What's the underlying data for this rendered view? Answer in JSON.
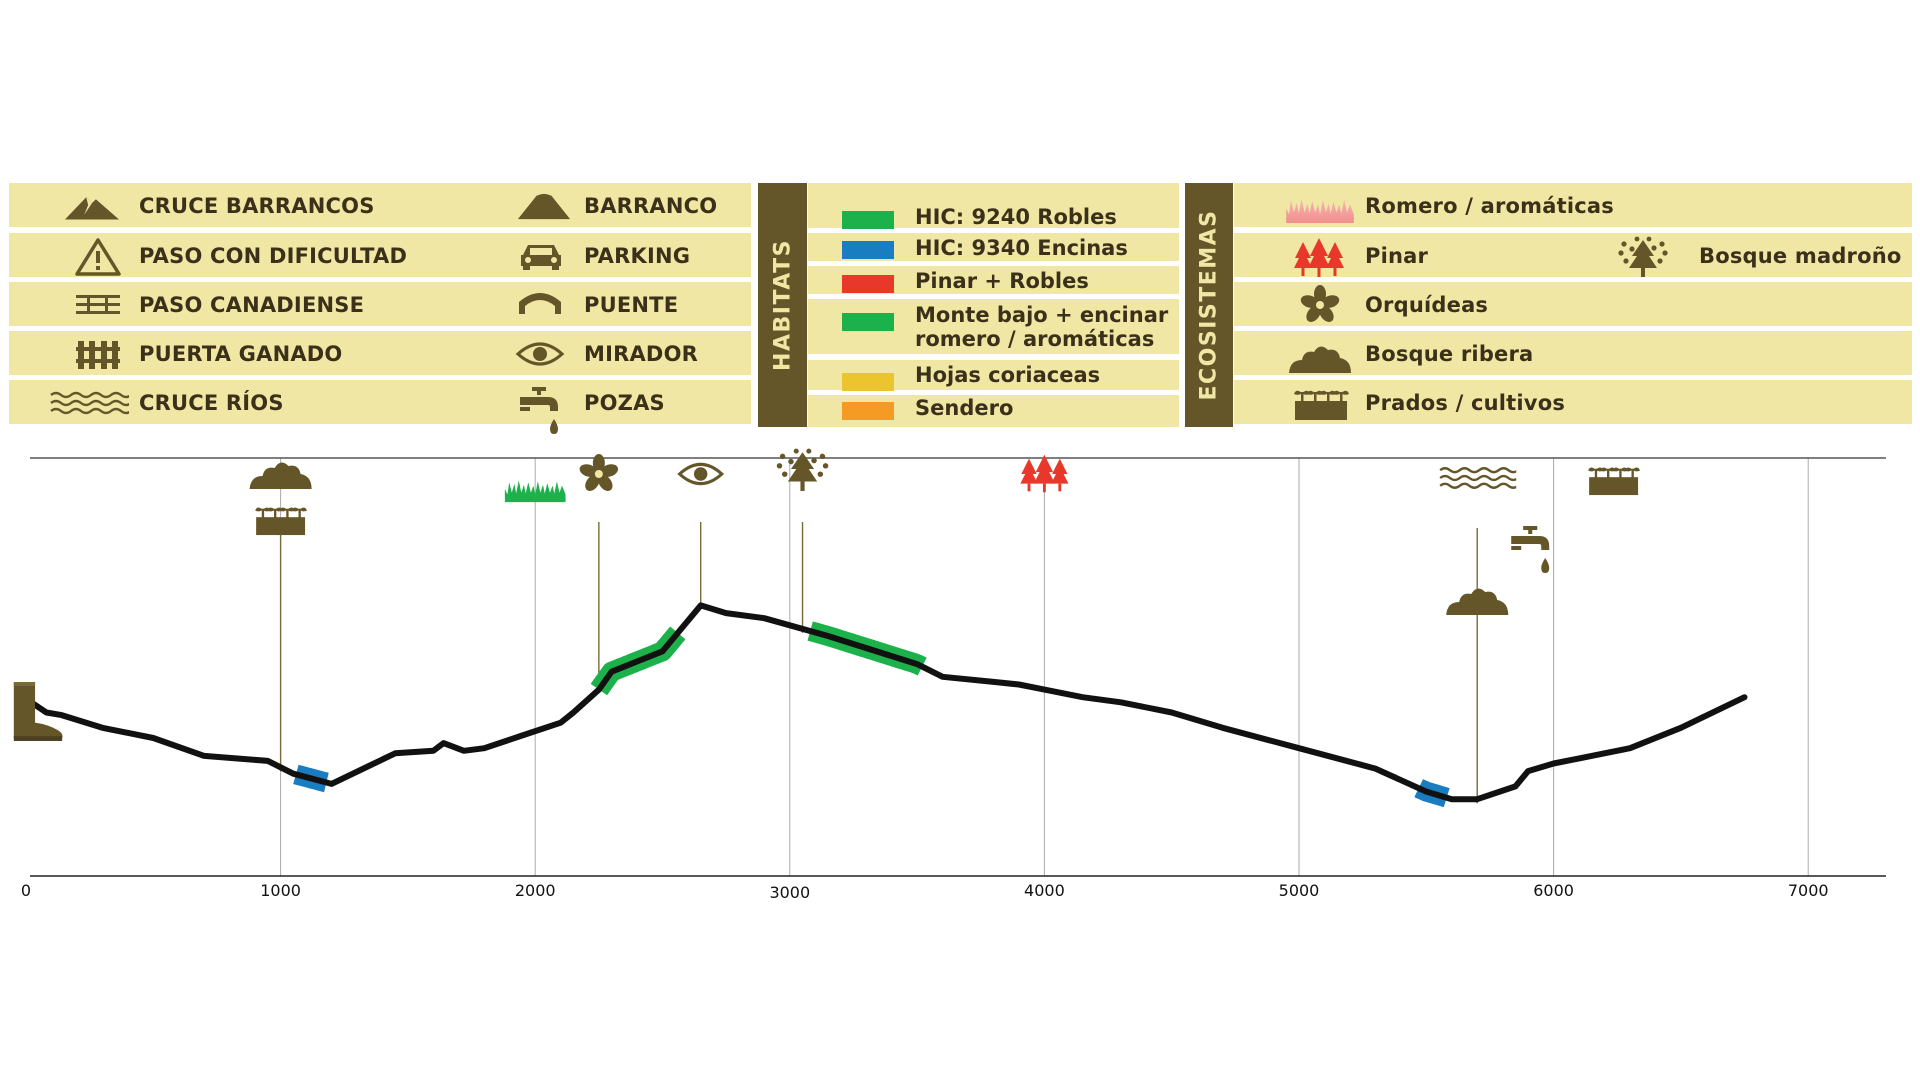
{
  "legend_symbols": {
    "left_col": [
      {
        "icon": "mountain-crossing-icon",
        "label": "CRUCE BARRANCOS"
      },
      {
        "icon": "warning-triangle-icon",
        "label": "PASO CON DIFICULTAD"
      },
      {
        "icon": "cattle-grid-icon",
        "label": "PASO CANADIENSE"
      },
      {
        "icon": "fence-gate-icon",
        "label": "PUERTA GANADO"
      },
      {
        "icon": "waves-icon",
        "label": "CRUCE RÍOS"
      }
    ],
    "right_col": [
      {
        "icon": "ravine-icon",
        "label": "BARRANCO"
      },
      {
        "icon": "car-icon",
        "label": "PARKING"
      },
      {
        "icon": "bridge-icon",
        "label": "PUENTE"
      },
      {
        "icon": "eye-icon",
        "label": "MIRADOR"
      },
      {
        "icon": "water-tap-icon",
        "label": "POZAS"
      }
    ]
  },
  "habitats": {
    "title": "HABITATS",
    "items": [
      {
        "label": "HIC: 9240 Robles",
        "color": "#1db14b"
      },
      {
        "label": "HIC: 9340 Encinas",
        "color": "#1a7dc1"
      },
      {
        "label": "Pinar + Robles",
        "color": "#e8382b"
      },
      {
        "label": "Monte bajo + encinar",
        "label2": "romero / aromáticas",
        "color": "#1db14b"
      },
      {
        "label": "Hojas coriaceas",
        "color": "#ecc52d"
      },
      {
        "label": "Sendero",
        "color": "#f59a23"
      }
    ]
  },
  "ecosistemas": {
    "title": "ECOSISTEMAS",
    "items": [
      {
        "icon": "grass-icon",
        "label": "Romero / aromáticas"
      },
      {
        "icon": "pine-trees-icon",
        "label": "Pinar"
      },
      {
        "icon": "strawberry-tree-icon",
        "label": "Bosque madroño"
      },
      {
        "icon": "flower-icon",
        "label": "Orquídeas"
      },
      {
        "icon": "bush-icon",
        "label": "Bosque ribera"
      },
      {
        "icon": "field-crop-icon",
        "label": "Prados / cultivos"
      }
    ]
  },
  "colors": {
    "legend_bg": "#f1e7a4",
    "band": "#65562a",
    "icon": "#65562a",
    "profile": "#111111"
  },
  "chart_data": {
    "type": "line",
    "title": "",
    "xlabel": "",
    "ylabel": "",
    "xlim": [
      0,
      7300
    ],
    "ylim": [
      0,
      100
    ],
    "x_ticks": [
      0,
      1000,
      2000,
      3000,
      4000,
      5000,
      6000,
      7000
    ],
    "x_tick_labels": [
      "0",
      "1000",
      "2000",
      "3000",
      "4000",
      "5000",
      "6000",
      "7000"
    ],
    "grid_vertical": true,
    "profile": {
      "x": [
        20,
        80,
        140,
        300,
        500,
        700,
        950,
        1050,
        1200,
        1450,
        1600,
        1640,
        1720,
        1800,
        1950,
        2100,
        2150,
        2250,
        2300,
        2400,
        2500,
        2550,
        2650,
        2750,
        2900,
        3150,
        3500,
        3600,
        3800,
        3900,
        4000,
        4150,
        4300,
        4500,
        4700,
        5000,
        5300,
        5500,
        5600,
        5700,
        5850,
        5900,
        6000,
        6100,
        6300,
        6500,
        6750
      ],
      "y": [
        27,
        25,
        24.5,
        22,
        20,
        16.5,
        15.5,
        13,
        11,
        17,
        17.5,
        19,
        17.5,
        18,
        20.5,
        23,
        25,
        29.5,
        33,
        35,
        37,
        40,
        46,
        44.5,
        43.5,
        40,
        34.5,
        32,
        31,
        30.5,
        29.5,
        28,
        27,
        25,
        22,
        18,
        14,
        9.5,
        8,
        8,
        10.5,
        13.5,
        15,
        16,
        18,
        22,
        28
      ]
    },
    "habitat_segments": [
      {
        "from": 1060,
        "to": 1180,
        "color": "#1a7dc1"
      },
      {
        "from": 2250,
        "to": 2560,
        "color": "#1db14b"
      },
      {
        "from": 3080,
        "to": 3520,
        "color": "#1db14b"
      },
      {
        "from": 5470,
        "to": 5580,
        "color": "#1a7dc1"
      }
    ],
    "markers": [
      {
        "x": 1000,
        "icons": [
          "bush-icon",
          "field-crop-icon"
        ]
      },
      {
        "x": 2000,
        "icons": [
          "grass-icon"
        ]
      },
      {
        "x": 2250,
        "icons": [
          "flower-icon"
        ]
      },
      {
        "x": 2650,
        "icons": [
          "eye-icon"
        ]
      },
      {
        "x": 3050,
        "icons": [
          "strawberry-tree-icon"
        ]
      },
      {
        "x": 4000,
        "icons": [
          "pine-trees-icon"
        ]
      },
      {
        "x": 5700,
        "icons": [
          "waves-icon",
          "water-tap-icon",
          "bush-icon"
        ]
      },
      {
        "x": 6000,
        "icons": [
          "field-crop-icon"
        ]
      }
    ],
    "start_icon": "boot-icon"
  }
}
